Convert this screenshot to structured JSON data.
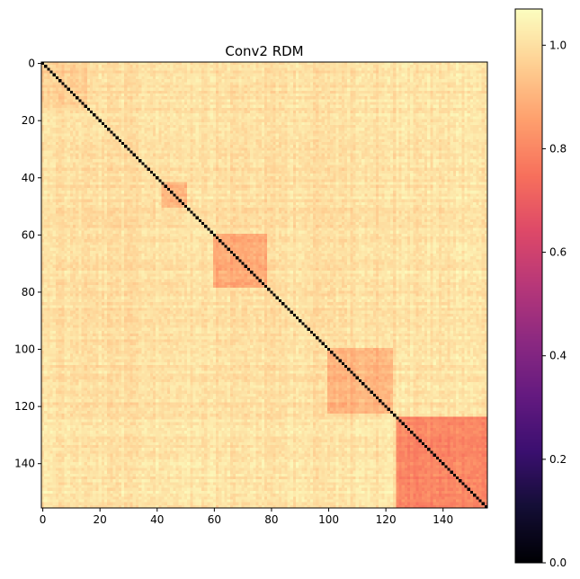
{
  "chart_data": {
    "type": "heatmap",
    "title": "Conv2 RDM",
    "matrix_size": 156,
    "description_blocks": [
      {
        "start": 0,
        "end": 15,
        "within_value": 0.96
      },
      {
        "start": 42,
        "end": 50,
        "within_value": 0.9
      },
      {
        "start": 60,
        "end": 78,
        "within_value": 0.88
      },
      {
        "start": 100,
        "end": 122,
        "within_value": 0.9
      },
      {
        "start": 124,
        "end": 155,
        "within_value": 0.8
      }
    ],
    "diagonal_value": 0.0,
    "background_value": 1.0,
    "x_ticks": [
      0,
      20,
      40,
      60,
      80,
      100,
      120,
      140
    ],
    "y_ticks": [
      0,
      20,
      40,
      60,
      80,
      100,
      120,
      140
    ],
    "x_tick_labels": [
      "0",
      "20",
      "40",
      "60",
      "80",
      "100",
      "120",
      "140"
    ],
    "y_tick_labels": [
      "0",
      "20",
      "40",
      "60",
      "80",
      "100",
      "120",
      "140"
    ],
    "colorbar": {
      "cmap": "magma",
      "vmin": 0.0,
      "vmax": 1.07,
      "ticks": [
        0.0,
        0.2,
        0.4,
        0.6,
        0.8,
        1.0
      ],
      "tick_labels": [
        "0.0",
        "0.2",
        "0.4",
        "0.6",
        "0.8",
        "1.0"
      ]
    }
  }
}
